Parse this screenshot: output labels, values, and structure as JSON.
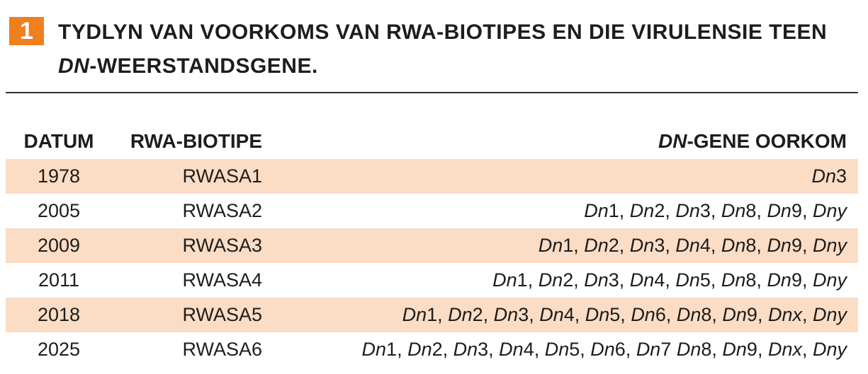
{
  "badge": "1",
  "title": "TYDLYN VAN VOORKOMS VAN RWA-BIOTIPES EN DIE VIRULENSIE TEEN DN-WEERSTANDSGENE.",
  "table": {
    "header": [
      "DATUM",
      "RWA-BIOTIPE",
      "DN-GENE OORKOM"
    ],
    "rows": [
      [
        "1978",
        "RWASA1",
        "Dn3"
      ],
      [
        "2005",
        "RWASA2",
        "Dn1, Dn2, Dn3, Dn8, Dn9, Dny"
      ],
      [
        "2009",
        "RWASA3",
        "Dn1, Dn2, Dn3, Dn4, Dn8, Dn9, Dny"
      ],
      [
        "2011",
        "RWASA4",
        "Dn1, Dn2, Dn3, Dn4, Dn5, Dn8, Dn9, Dny"
      ],
      [
        "2018",
        "RWASA5",
        "Dn1, Dn2, Dn3, Dn4, Dn5, Dn6, Dn8, Dn9, Dnx, Dny"
      ],
      [
        "2025",
        "RWASA6",
        "Dn1, Dn2, Dn3, Dn4, Dn5, Dn6, Dn7 Dn8, Dn9, Dnx, Dny"
      ]
    ]
  }
}
